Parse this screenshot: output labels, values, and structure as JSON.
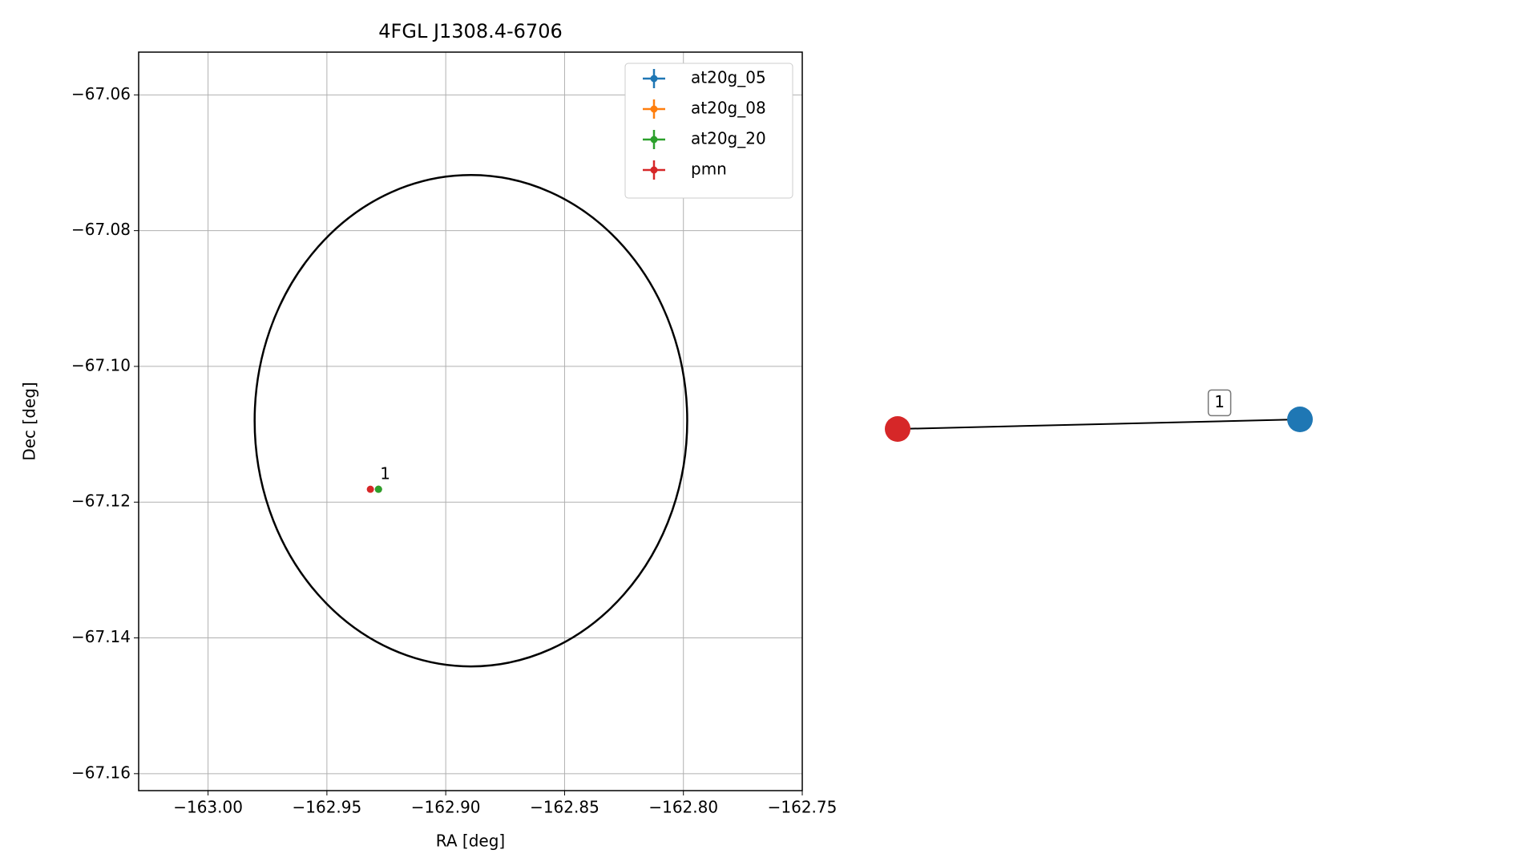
{
  "chart_data": [
    {
      "type": "scatter",
      "title": "4FGL J1308.4-6706",
      "x_label": "RA [deg]",
      "y_label": "Dec [deg]",
      "xlim": [
        -163.0292,
        -162.75
      ],
      "ylim": [
        -67.1625,
        -67.0537
      ],
      "xticks": [
        {
          "value": -163.0,
          "label": "−163.00"
        },
        {
          "value": -162.95,
          "label": "−162.95"
        },
        {
          "value": -162.9,
          "label": "−162.90"
        },
        {
          "value": -162.85,
          "label": "−162.85"
        },
        {
          "value": -162.8,
          "label": "−162.80"
        },
        {
          "value": -162.75,
          "label": "−162.75"
        }
      ],
      "yticks": [
        {
          "value": -67.06,
          "label": "−67.06"
        },
        {
          "value": -67.08,
          "label": "−67.08"
        },
        {
          "value": -67.1,
          "label": "−67.10"
        },
        {
          "value": -67.12,
          "label": "−67.12"
        },
        {
          "value": -67.14,
          "label": "−67.14"
        },
        {
          "value": -67.16,
          "label": "−67.16"
        }
      ],
      "grid": true,
      "legend": "upper right",
      "series": [
        {
          "name": "at20g_05",
          "color": "#1f77b4",
          "x": [
            -162.9283
          ],
          "values": [
            -67.1181
          ]
        },
        {
          "name": "at20g_08",
          "color": "#ff7f0e",
          "x": [
            -162.9283
          ],
          "values": [
            -67.1181
          ]
        },
        {
          "name": "at20g_20",
          "color": "#2ca02c",
          "x": [
            -162.9283
          ],
          "values": [
            -67.1181
          ]
        },
        {
          "name": "pmn",
          "color": "#d62728",
          "x": [
            -162.9317
          ],
          "values": [
            -67.1181
          ]
        }
      ],
      "region": {
        "ra": -162.8894,
        "dec": -67.108,
        "ra_radius": 0.091,
        "dec_radius": 0.0362,
        "color": "#000000"
      },
      "annotations": [
        {
          "text": "1",
          "x": -162.9283,
          "y": -67.1181
        }
      ]
    },
    {
      "type": "graph",
      "node_colors": [
        "#d62728",
        "#1f77b4"
      ],
      "edges": [
        {
          "source": 0,
          "target": 1,
          "label": "1"
        }
      ]
    }
  ]
}
